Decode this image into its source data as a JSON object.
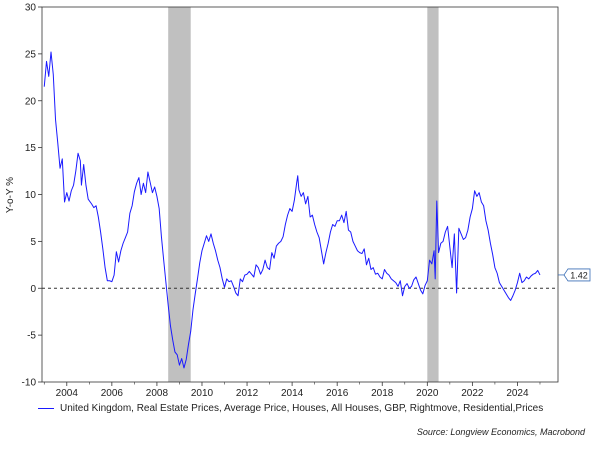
{
  "chart_data": {
    "type": "line",
    "ylabel": "Y-o-Y %",
    "ylim": [
      -10,
      30
    ],
    "y_ticks": [
      -10,
      -5,
      0,
      5,
      10,
      15,
      20,
      25,
      30
    ],
    "xlim": [
      2002.9,
      2025.8
    ],
    "x_ticks": [
      2004,
      2006,
      2008,
      2010,
      2012,
      2014,
      2016,
      2018,
      2020,
      2022,
      2024
    ],
    "zero_line": true,
    "grid": false,
    "recession_bands": [
      [
        2008.5,
        2009.5
      ],
      [
        2020.0,
        2020.5
      ]
    ],
    "recession_color": "#c0c0c0",
    "last_value_label": "1.42",
    "series": [
      {
        "name": "United Kingdom, Real Estate Prices, Average Price, Houses, All Houses, GBP, Rightmove, Residential,Prices",
        "color": "#1a1aff",
        "points": [
          [
            2003.0,
            21.5
          ],
          [
            2003.1,
            24.2
          ],
          [
            2003.2,
            22.6
          ],
          [
            2003.3,
            25.2
          ],
          [
            2003.4,
            22.8
          ],
          [
            2003.5,
            18.0
          ],
          [
            2003.6,
            15.5
          ],
          [
            2003.7,
            12.8
          ],
          [
            2003.8,
            13.8
          ],
          [
            2003.9,
            9.2
          ],
          [
            2004.0,
            10.2
          ],
          [
            2004.1,
            9.3
          ],
          [
            2004.2,
            10.4
          ],
          [
            2004.3,
            11.0
          ],
          [
            2004.4,
            12.5
          ],
          [
            2004.5,
            14.4
          ],
          [
            2004.6,
            13.6
          ],
          [
            2004.65,
            11.0
          ],
          [
            2004.75,
            13.2
          ],
          [
            2004.85,
            11.0
          ],
          [
            2004.95,
            9.5
          ],
          [
            2005.1,
            9.0
          ],
          [
            2005.2,
            8.6
          ],
          [
            2005.3,
            8.8
          ],
          [
            2005.4,
            7.6
          ],
          [
            2005.5,
            6.0
          ],
          [
            2005.6,
            4.2
          ],
          [
            2005.7,
            2.2
          ],
          [
            2005.8,
            0.8
          ],
          [
            2005.9,
            0.8
          ],
          [
            2006.0,
            0.7
          ],
          [
            2006.1,
            1.4
          ],
          [
            2006.2,
            3.9
          ],
          [
            2006.3,
            2.8
          ],
          [
            2006.4,
            4.0
          ],
          [
            2006.5,
            4.8
          ],
          [
            2006.6,
            5.4
          ],
          [
            2006.7,
            6.0
          ],
          [
            2006.8,
            8.0
          ],
          [
            2006.9,
            8.8
          ],
          [
            2007.0,
            10.3
          ],
          [
            2007.1,
            11.2
          ],
          [
            2007.2,
            11.8
          ],
          [
            2007.3,
            10.0
          ],
          [
            2007.4,
            11.2
          ],
          [
            2007.5,
            10.2
          ],
          [
            2007.6,
            12.4
          ],
          [
            2007.7,
            11.3
          ],
          [
            2007.8,
            10.2
          ],
          [
            2007.9,
            10.8
          ],
          [
            2008.0,
            9.8
          ],
          [
            2008.1,
            8.5
          ],
          [
            2008.2,
            5.5
          ],
          [
            2008.3,
            3.0
          ],
          [
            2008.4,
            0.6
          ],
          [
            2008.5,
            -1.8
          ],
          [
            2008.6,
            -4.0
          ],
          [
            2008.7,
            -5.5
          ],
          [
            2008.8,
            -6.8
          ],
          [
            2008.9,
            -7.1
          ],
          [
            2009.0,
            -8.2
          ],
          [
            2009.1,
            -7.5
          ],
          [
            2009.2,
            -8.5
          ],
          [
            2009.3,
            -7.6
          ],
          [
            2009.4,
            -6.0
          ],
          [
            2009.5,
            -4.6
          ],
          [
            2009.6,
            -2.3
          ],
          [
            2009.7,
            -0.6
          ],
          [
            2009.8,
            1.0
          ],
          [
            2009.9,
            2.7
          ],
          [
            2010.0,
            4.0
          ],
          [
            2010.1,
            4.8
          ],
          [
            2010.2,
            5.6
          ],
          [
            2010.3,
            5.0
          ],
          [
            2010.4,
            5.8
          ],
          [
            2010.5,
            4.8
          ],
          [
            2010.6,
            4.0
          ],
          [
            2010.7,
            3.0
          ],
          [
            2010.8,
            2.2
          ],
          [
            2010.9,
            1.0
          ],
          [
            2011.0,
            0.1
          ],
          [
            2011.1,
            1.0
          ],
          [
            2011.2,
            0.7
          ],
          [
            2011.3,
            0.8
          ],
          [
            2011.4,
            0.2
          ],
          [
            2011.5,
            -0.5
          ],
          [
            2011.6,
            -0.8
          ],
          [
            2011.7,
            1.0
          ],
          [
            2011.8,
            0.7
          ],
          [
            2011.9,
            1.4
          ],
          [
            2012.0,
            1.5
          ],
          [
            2012.1,
            1.8
          ],
          [
            2012.2,
            1.5
          ],
          [
            2012.3,
            1.2
          ],
          [
            2012.4,
            2.5
          ],
          [
            2012.5,
            2.2
          ],
          [
            2012.6,
            1.5
          ],
          [
            2012.7,
            2.0
          ],
          [
            2012.8,
            3.0
          ],
          [
            2012.9,
            2.2
          ],
          [
            2013.0,
            2.0
          ],
          [
            2013.1,
            3.8
          ],
          [
            2013.2,
            3.2
          ],
          [
            2013.3,
            4.5
          ],
          [
            2013.4,
            4.8
          ],
          [
            2013.5,
            5.0
          ],
          [
            2013.6,
            5.5
          ],
          [
            2013.7,
            6.8
          ],
          [
            2013.8,
            7.8
          ],
          [
            2013.9,
            8.5
          ],
          [
            2014.0,
            8.2
          ],
          [
            2014.1,
            9.4
          ],
          [
            2014.2,
            11.2
          ],
          [
            2014.25,
            12.0
          ],
          [
            2014.3,
            10.5
          ],
          [
            2014.4,
            9.8
          ],
          [
            2014.5,
            10.2
          ],
          [
            2014.6,
            9.0
          ],
          [
            2014.7,
            9.8
          ],
          [
            2014.8,
            7.6
          ],
          [
            2014.9,
            7.8
          ],
          [
            2015.0,
            6.8
          ],
          [
            2015.1,
            6.0
          ],
          [
            2015.2,
            5.4
          ],
          [
            2015.3,
            4.0
          ],
          [
            2015.4,
            2.6
          ],
          [
            2015.5,
            3.8
          ],
          [
            2015.6,
            4.8
          ],
          [
            2015.7,
            6.0
          ],
          [
            2015.8,
            6.8
          ],
          [
            2015.9,
            6.6
          ],
          [
            2016.0,
            7.2
          ],
          [
            2016.1,
            7.2
          ],
          [
            2016.2,
            7.8
          ],
          [
            2016.3,
            7.0
          ],
          [
            2016.4,
            8.2
          ],
          [
            2016.5,
            6.2
          ],
          [
            2016.6,
            6.0
          ],
          [
            2016.7,
            5.0
          ],
          [
            2016.8,
            4.5
          ],
          [
            2016.9,
            4.0
          ],
          [
            2017.0,
            3.8
          ],
          [
            2017.1,
            3.7
          ],
          [
            2017.2,
            4.2
          ],
          [
            2017.3,
            2.5
          ],
          [
            2017.4,
            3.2
          ],
          [
            2017.5,
            2.0
          ],
          [
            2017.6,
            2.2
          ],
          [
            2017.7,
            1.5
          ],
          [
            2017.8,
            1.6
          ],
          [
            2017.9,
            1.2
          ],
          [
            2018.0,
            1.0
          ],
          [
            2018.1,
            2.0
          ],
          [
            2018.2,
            1.6
          ],
          [
            2018.3,
            1.4
          ],
          [
            2018.4,
            1.0
          ],
          [
            2018.5,
            0.8
          ],
          [
            2018.6,
            0.6
          ],
          [
            2018.7,
            0.2
          ],
          [
            2018.8,
            0.8
          ],
          [
            2018.9,
            -0.8
          ],
          [
            2019.0,
            0.2
          ],
          [
            2019.1,
            0.5
          ],
          [
            2019.2,
            0.0
          ],
          [
            2019.3,
            0.2
          ],
          [
            2019.4,
            0.9
          ],
          [
            2019.5,
            1.2
          ],
          [
            2019.6,
            0.5
          ],
          [
            2019.7,
            -0.2
          ],
          [
            2019.8,
            -0.6
          ],
          [
            2019.9,
            0.3
          ],
          [
            2020.0,
            0.8
          ],
          [
            2020.1,
            3.0
          ],
          [
            2020.2,
            2.6
          ],
          [
            2020.3,
            4.0
          ],
          [
            2020.35,
            1.0
          ],
          [
            2020.42,
            9.3
          ],
          [
            2020.5,
            3.8
          ],
          [
            2020.6,
            4.8
          ],
          [
            2020.7,
            5.0
          ],
          [
            2020.8,
            6.0
          ],
          [
            2020.9,
            6.6
          ],
          [
            2021.0,
            4.4
          ],
          [
            2021.1,
            2.2
          ],
          [
            2021.15,
            4.0
          ],
          [
            2021.2,
            5.8
          ],
          [
            2021.3,
            -0.5
          ],
          [
            2021.4,
            6.4
          ],
          [
            2021.5,
            5.8
          ],
          [
            2021.6,
            5.2
          ],
          [
            2021.7,
            5.4
          ],
          [
            2021.8,
            6.2
          ],
          [
            2021.9,
            7.6
          ],
          [
            2022.0,
            8.5
          ],
          [
            2022.1,
            10.4
          ],
          [
            2022.2,
            9.8
          ],
          [
            2022.3,
            10.2
          ],
          [
            2022.4,
            9.2
          ],
          [
            2022.5,
            8.8
          ],
          [
            2022.6,
            7.2
          ],
          [
            2022.7,
            6.2
          ],
          [
            2022.8,
            4.8
          ],
          [
            2022.9,
            3.6
          ],
          [
            2023.0,
            2.2
          ],
          [
            2023.1,
            1.6
          ],
          [
            2023.2,
            0.6
          ],
          [
            2023.3,
            0.2
          ],
          [
            2023.4,
            -0.2
          ],
          [
            2023.5,
            -0.6
          ],
          [
            2023.6,
            -1.0
          ],
          [
            2023.7,
            -1.3
          ],
          [
            2023.8,
            -0.8
          ],
          [
            2023.9,
            -0.2
          ],
          [
            2024.0,
            0.6
          ],
          [
            2024.1,
            1.6
          ],
          [
            2024.2,
            0.6
          ],
          [
            2024.3,
            0.8
          ],
          [
            2024.4,
            1.2
          ],
          [
            2024.5,
            1.0
          ],
          [
            2024.6,
            1.3
          ],
          [
            2024.7,
            1.5
          ],
          [
            2024.8,
            1.6
          ],
          [
            2024.9,
            1.9
          ],
          [
            2025.0,
            1.42
          ]
        ]
      }
    ],
    "legend": {
      "label": "United Kingdom, Real Estate Prices, Average Price, Houses, All Houses, GBP, Rightmove, Residential,Prices",
      "placement": "bottom"
    },
    "source": "Source: Longview Economics, Macrobond"
  }
}
